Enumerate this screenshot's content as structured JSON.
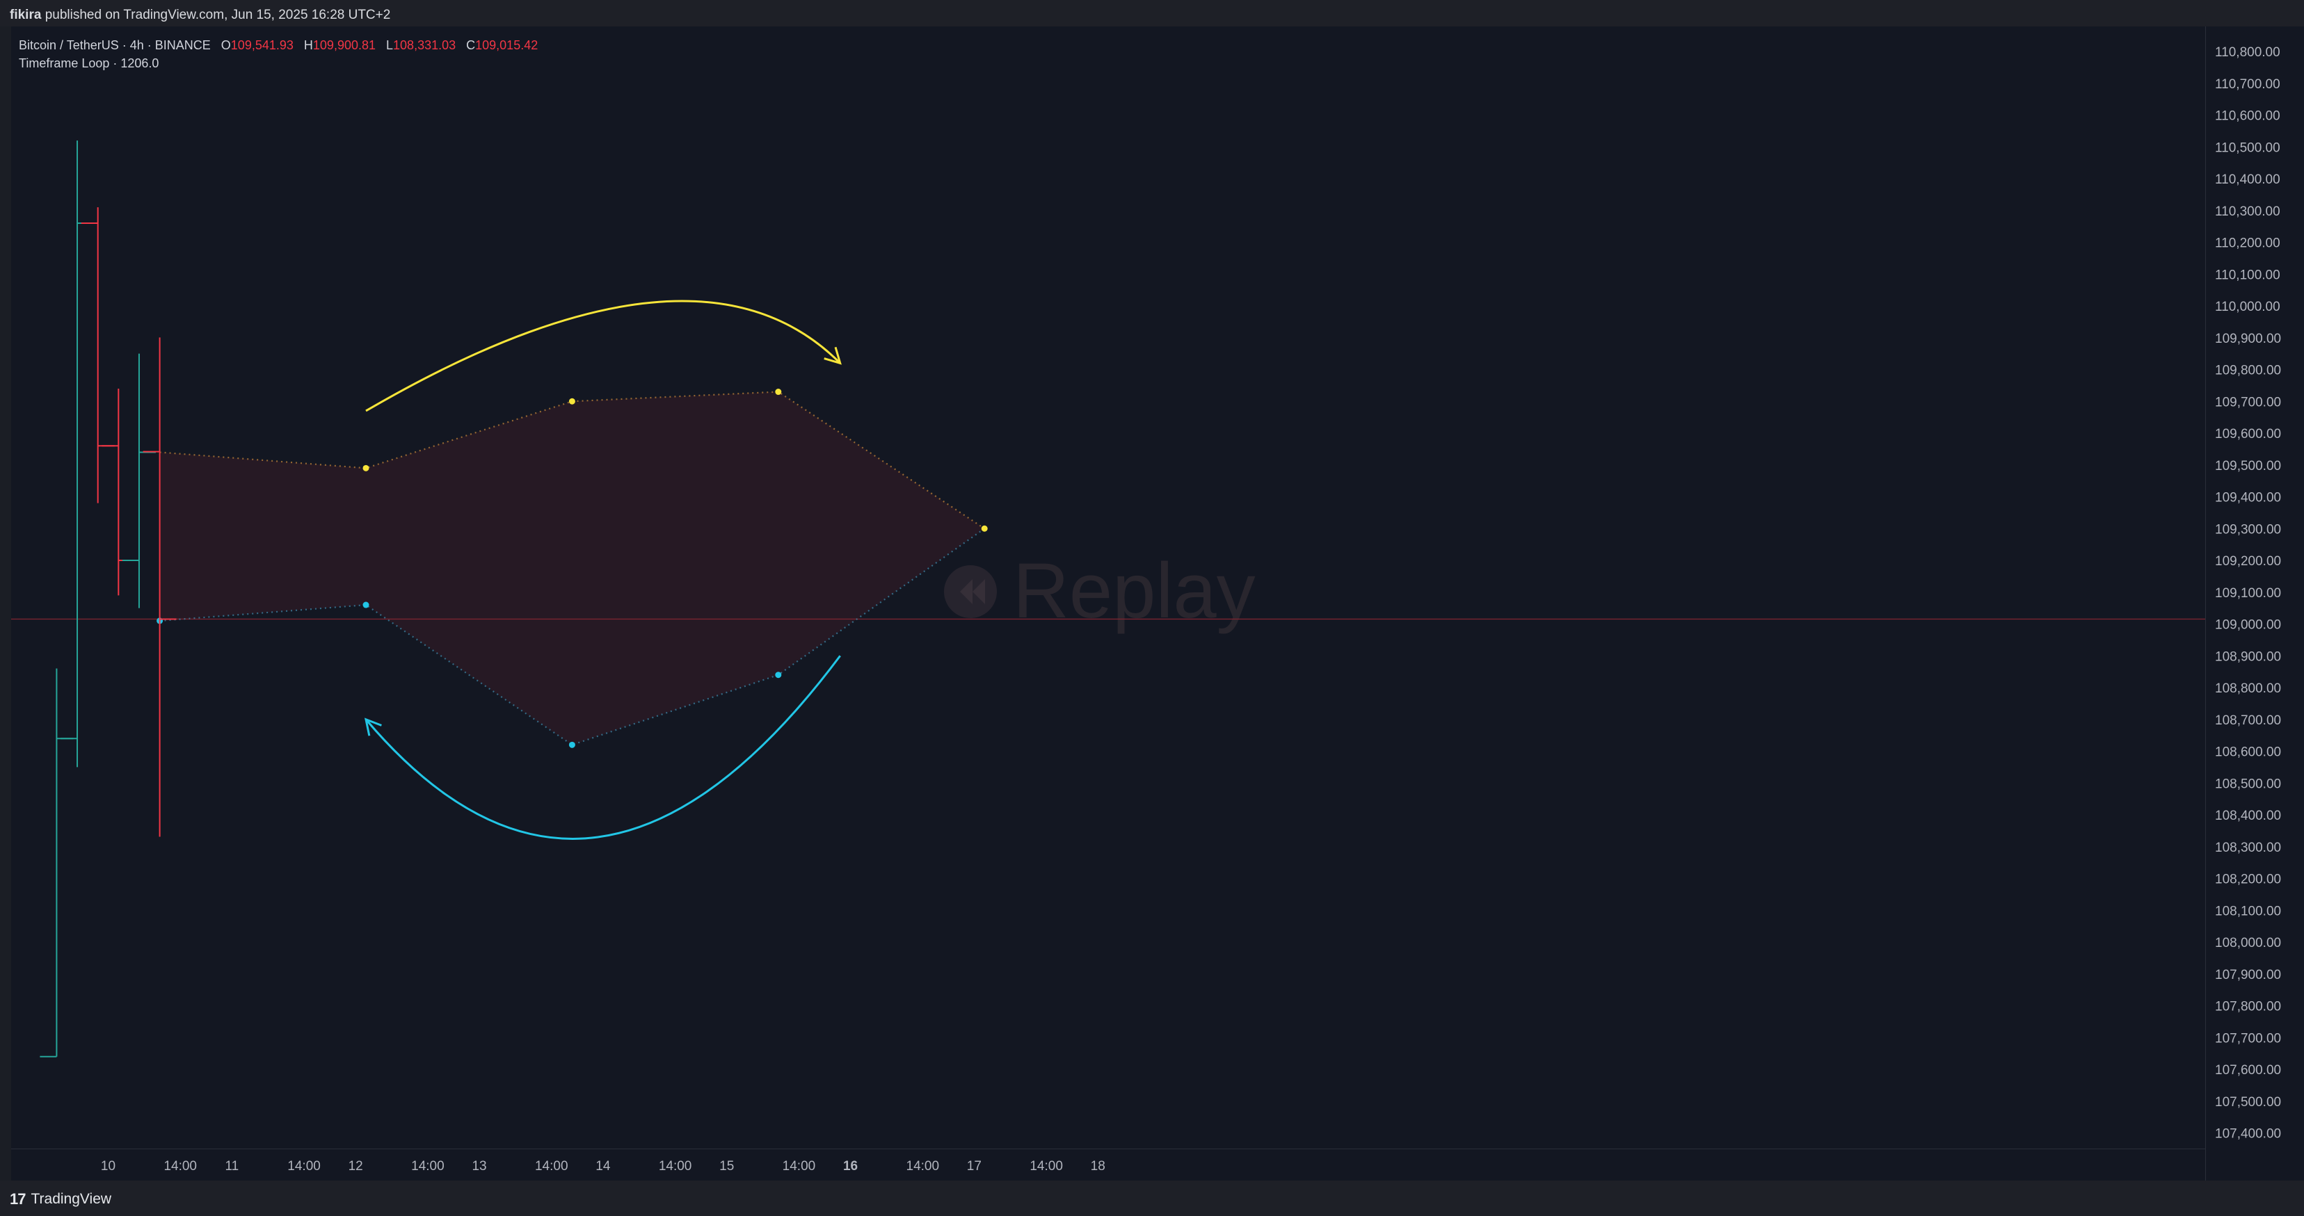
{
  "header": {
    "publisher": "fikira",
    "published_text": "published on TradingView.com, Jun 15, 2025 16:28 UTC+2"
  },
  "legend": {
    "symbol": "Bitcoin / TetherUS · 4h · BINANCE",
    "ohlc": [
      {
        "key": "O",
        "value": "109,541.93"
      },
      {
        "key": "H",
        "value": "109,900.81"
      },
      {
        "key": "L",
        "value": "108,331.03"
      },
      {
        "key": "C",
        "value": "109,015.42"
      }
    ],
    "indicator": "Timeframe Loop · 1206.0"
  },
  "watermark": {
    "text": "Replay"
  },
  "footer": {
    "brand": "TradingView"
  },
  "colors": {
    "up": "#26a69a",
    "down": "#f23645",
    "yellow": "#f7e53a",
    "cyan": "#22c6e6",
    "fill": "#2a1a24",
    "background": "#131722"
  },
  "chart_data": {
    "type": "ohlc",
    "ylim": [
      107350,
      110850
    ],
    "price_ticks": [
      "110,800.00",
      "110,700.00",
      "110,600.00",
      "110,500.00",
      "110,400.00",
      "110,300.00",
      "110,200.00",
      "110,100.00",
      "110,000.00",
      "109,900.00",
      "109,800.00",
      "109,700.00",
      "109,600.00",
      "109,500.00",
      "109,400.00",
      "109,300.00",
      "109,200.00",
      "109,100.00",
      "109,000.00",
      "108,900.00",
      "108,800.00",
      "108,700.00",
      "108,600.00",
      "108,500.00",
      "108,400.00",
      "108,300.00",
      "108,200.00",
      "108,100.00",
      "108,000.00",
      "107,900.00",
      "107,800.00",
      "107,700.00",
      "107,600.00",
      "107,500.00",
      "107,400.00"
    ],
    "time_ticks": [
      {
        "label": "10",
        "t": 0,
        "bold": false
      },
      {
        "label": "14:00",
        "t": 14,
        "bold": false
      },
      {
        "label": "11",
        "t": 24,
        "bold": false
      },
      {
        "label": "14:00",
        "t": 38,
        "bold": false
      },
      {
        "label": "12",
        "t": 48,
        "bold": false
      },
      {
        "label": "14:00",
        "t": 62,
        "bold": false
      },
      {
        "label": "13",
        "t": 72,
        "bold": false
      },
      {
        "label": "14:00",
        "t": 86,
        "bold": false
      },
      {
        "label": "14",
        "t": 96,
        "bold": false
      },
      {
        "label": "14:00",
        "t": 110,
        "bold": false
      },
      {
        "label": "15",
        "t": 120,
        "bold": false
      },
      {
        "label": "14:00",
        "t": 134,
        "bold": false
      },
      {
        "label": "16",
        "t": 144,
        "bold": true
      },
      {
        "label": "14:00",
        "t": 158,
        "bold": false
      },
      {
        "label": "17",
        "t": 168,
        "bold": false
      },
      {
        "label": "14:00",
        "t": 182,
        "bold": false
      },
      {
        "label": "18",
        "t": 192,
        "bold": false
      }
    ],
    "candles": [
      {
        "t": -10,
        "open": 107640,
        "high": 108860,
        "low": 107640,
        "close": 108640
      },
      {
        "t": -6,
        "open": 108640,
        "high": 110520,
        "low": 108550,
        "close": 110260
      },
      {
        "t": -2,
        "open": 110260,
        "high": 110310,
        "low": 109380,
        "close": 109560
      },
      {
        "t": 2,
        "open": 109560,
        "high": 109740,
        "low": 109090,
        "close": 109200
      },
      {
        "t": 6,
        "open": 109200,
        "high": 109850,
        "low": 109050,
        "close": 109540
      },
      {
        "t": 10,
        "open": 109541.93,
        "high": 109900.81,
        "low": 108331.03,
        "close": 109015.42
      }
    ],
    "current_price": 109015.42,
    "upper_path": [
      {
        "t": 10,
        "price": 109540
      },
      {
        "t": 50,
        "price": 109490
      },
      {
        "t": 90,
        "price": 109700
      },
      {
        "t": 130,
        "price": 109730
      },
      {
        "t": 170,
        "price": 109300
      }
    ],
    "lower_path": [
      {
        "t": 10,
        "price": 109010
      },
      {
        "t": 50,
        "price": 109060
      },
      {
        "t": 90,
        "price": 108620
      },
      {
        "t": 130,
        "price": 108840
      },
      {
        "t": 170,
        "price": 109300
      }
    ],
    "upper_arrow": [
      {
        "t": 50,
        "price": 109670
      },
      {
        "t": 105,
        "price": 110010
      },
      {
        "t": 142,
        "price": 109820
      }
    ],
    "lower_arrow": [
      {
        "t": 142,
        "price": 108900
      },
      {
        "t": 95,
        "price": 108330
      },
      {
        "t": 50,
        "price": 108700
      }
    ]
  }
}
